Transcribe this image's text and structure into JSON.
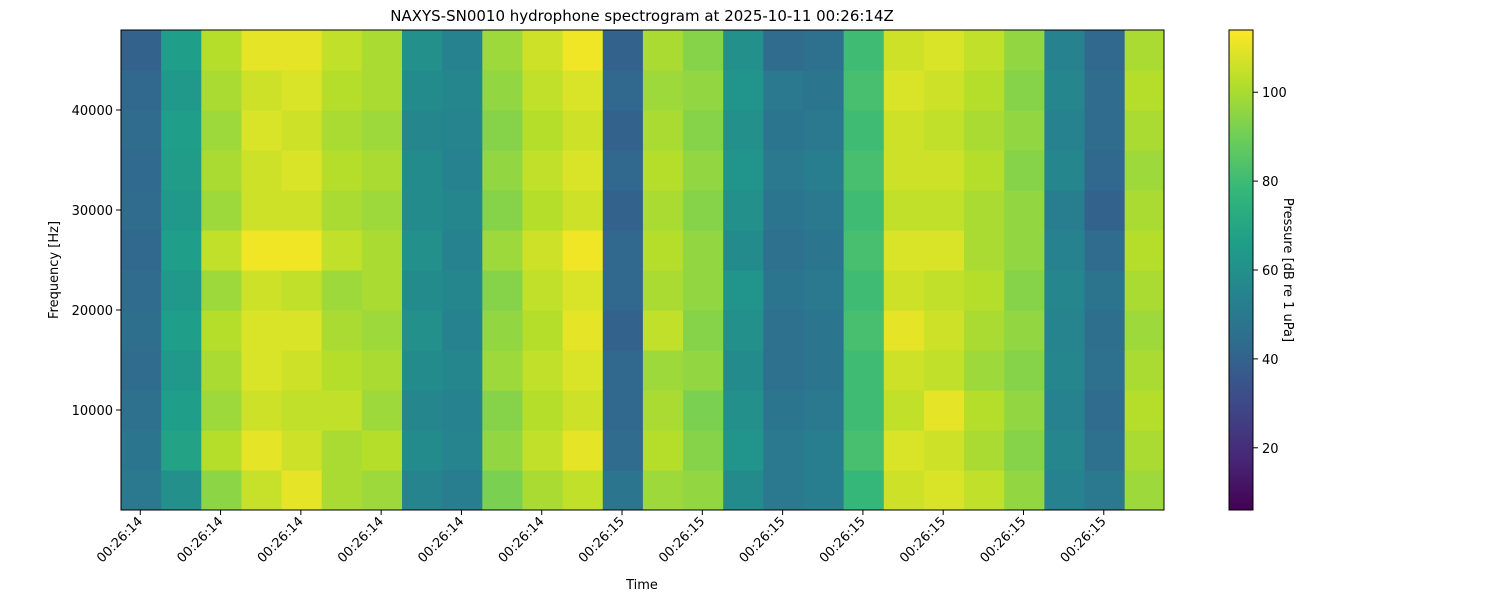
{
  "chart_data": {
    "type": "heatmap",
    "title": "NAXYS-SN0010 hydrophone spectrogram at 2025-10-11 00:26:14Z",
    "xlabel": "Time",
    "ylabel": "Frequency [Hz]",
    "colorbar_label": "Pressure [dB re 1 uPa]",
    "colormap": "viridis",
    "x": [
      14.401,
      14.451,
      14.501,
      14.551,
      14.601,
      14.651,
      14.701,
      14.751,
      14.801,
      14.851,
      14.901,
      14.951,
      15.001,
      15.051,
      15.101,
      15.151,
      15.201,
      15.251,
      15.301,
      15.351,
      15.401,
      15.451,
      15.501,
      15.551,
      15.601,
      15.651
    ],
    "y": [
      2000,
      6000,
      10000,
      14000,
      18000,
      22000,
      26000,
      30000,
      34000,
      38000,
      42000,
      46000
    ],
    "values": [
      [
        50,
        60,
        95,
        105,
        110,
        100,
        98,
        55,
        52,
        92,
        100,
        104,
        48,
        98,
        96,
        58,
        50,
        52,
        78,
        106,
        108,
        104,
        96,
        54,
        50,
        98
      ],
      [
        48,
        68,
        102,
        110,
        106,
        100,
        102,
        58,
        55,
        96,
        104,
        110,
        44,
        102,
        94,
        62,
        50,
        52,
        82,
        108,
        106,
        100,
        94,
        56,
        46,
        100
      ],
      [
        46,
        66,
        98,
        106,
        104,
        104,
        98,
        56,
        54,
        94,
        102,
        106,
        42,
        100,
        92,
        60,
        48,
        50,
        80,
        104,
        110,
        102,
        96,
        54,
        44,
        102
      ],
      [
        44,
        64,
        100,
        108,
        106,
        102,
        100,
        58,
        56,
        98,
        104,
        108,
        42,
        98,
        96,
        58,
        46,
        48,
        80,
        106,
        104,
        98,
        94,
        56,
        46,
        100
      ],
      [
        45,
        66,
        102,
        108,
        108,
        100,
        98,
        60,
        54,
        96,
        102,
        110,
        40,
        104,
        94,
        60,
        46,
        48,
        82,
        110,
        106,
        100,
        96,
        55,
        45,
        98
      ],
      [
        44,
        64,
        98,
        106,
        104,
        98,
        100,
        58,
        56,
        94,
        104,
        108,
        42,
        100,
        96,
        62,
        48,
        50,
        80,
        106,
        104,
        102,
        94,
        56,
        47,
        100
      ],
      [
        42,
        66,
        104,
        112,
        112,
        104,
        100,
        60,
        54,
        98,
        106,
        112,
        42,
        102,
        96,
        58,
        46,
        48,
        82,
        108,
        108,
        100,
        96,
        54,
        44,
        102
      ],
      [
        44,
        64,
        98,
        106,
        106,
        100,
        98,
        58,
        56,
        94,
        102,
        106,
        40,
        100,
        94,
        60,
        48,
        50,
        80,
        104,
        104,
        100,
        96,
        52,
        40,
        100
      ],
      [
        43,
        65,
        100,
        106,
        108,
        102,
        100,
        58,
        54,
        96,
        104,
        108,
        42,
        102,
        96,
        62,
        50,
        52,
        82,
        106,
        106,
        102,
        94,
        56,
        42,
        98
      ],
      [
        44,
        66,
        98,
        108,
        106,
        100,
        98,
        56,
        55,
        94,
        102,
        106,
        40,
        100,
        94,
        60,
        48,
        50,
        80,
        106,
        104,
        100,
        96,
        54,
        44,
        100
      ],
      [
        42,
        64,
        100,
        106,
        108,
        102,
        100,
        58,
        56,
        96,
        104,
        108,
        42,
        98,
        96,
        62,
        50,
        48,
        82,
        108,
        106,
        102,
        94,
        56,
        44,
        102
      ],
      [
        40,
        66,
        102,
        110,
        110,
        104,
        100,
        60,
        54,
        98,
        106,
        112,
        40,
        100,
        94,
        60,
        44,
        46,
        80,
        106,
        108,
        104,
        96,
        54,
        42,
        100
      ]
    ],
    "xlim": [
      14.376,
      15.675
    ],
    "xticks": [
      {
        "value": 14.4,
        "label": "00:26:14"
      },
      {
        "value": 14.5,
        "label": "00:26:14"
      },
      {
        "value": 14.6,
        "label": "00:26:14"
      },
      {
        "value": 14.7,
        "label": "00:26:14"
      },
      {
        "value": 14.8,
        "label": "00:26:14"
      },
      {
        "value": 14.9,
        "label": "00:26:14"
      },
      {
        "value": 15.0,
        "label": "00:26:15"
      },
      {
        "value": 15.1,
        "label": "00:26:15"
      },
      {
        "value": 15.2,
        "label": "00:26:15"
      },
      {
        "value": 15.3,
        "label": "00:26:15"
      },
      {
        "value": 15.4,
        "label": "00:26:15"
      },
      {
        "value": 15.5,
        "label": "00:26:15"
      },
      {
        "value": 15.6,
        "label": "00:26:15"
      }
    ],
    "ylim": [
      0,
      48000
    ],
    "yticks": [
      10000,
      20000,
      30000,
      40000
    ],
    "clim": [
      6,
      114
    ],
    "cticks": [
      20,
      40,
      60,
      80,
      100
    ]
  }
}
